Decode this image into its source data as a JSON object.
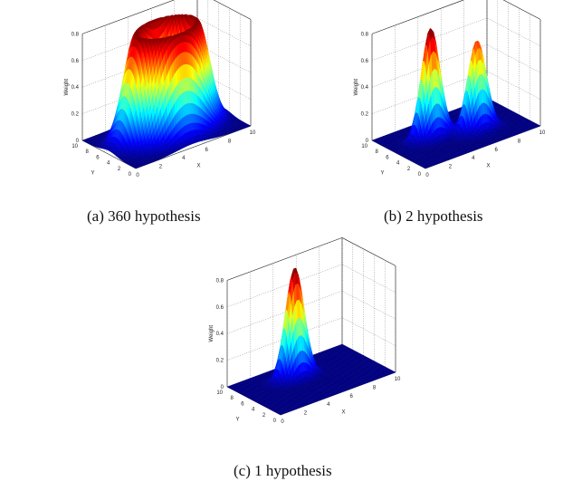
{
  "chart_data": [
    {
      "type": "surface",
      "caption": "(a) 360 hypothesis",
      "xlabel": "X",
      "ylabel": "Y",
      "zlabel": "Weight",
      "xlim": [
        0,
        10
      ],
      "ylim": [
        0,
        10
      ],
      "zlim": [
        0,
        0.8
      ],
      "x_ticks": [
        "0",
        "2",
        "4",
        "6",
        "8",
        "10"
      ],
      "y_ticks": [
        "0",
        "2",
        "4",
        "6",
        "8",
        "10"
      ],
      "z_ticks": [
        "0",
        "0.2",
        "0.4",
        "0.6",
        "0.8"
      ],
      "grid": true,
      "colormap": "jet",
      "surface": {
        "shape": "ring",
        "center": [
          5,
          5
        ],
        "radius": 2.4,
        "width": 1.0,
        "peak": 0.8
      }
    },
    {
      "type": "surface",
      "caption": "(b) 2 hypothesis",
      "xlabel": "X",
      "ylabel": "Y",
      "zlabel": "Weight",
      "xlim": [
        0,
        10
      ],
      "ylim": [
        0,
        10
      ],
      "zlim": [
        0,
        0.8
      ],
      "x_ticks": [
        "0",
        "2",
        "4",
        "6",
        "8",
        "10"
      ],
      "y_ticks": [
        "0",
        "2",
        "4",
        "6",
        "8",
        "10"
      ],
      "z_ticks": [
        "0",
        "0.2",
        "0.4",
        "0.6",
        "0.8"
      ],
      "grid": true,
      "colormap": "jet",
      "surface": {
        "shape": "peaks",
        "peaks": [
          {
            "center": [
              3.2,
              5.9
            ],
            "sigma": 0.75,
            "height": 0.83
          },
          {
            "center": [
              6.3,
              3.9
            ],
            "sigma": 0.75,
            "height": 0.68
          }
        ]
      }
    },
    {
      "type": "surface",
      "caption": "(c) 1 hypothesis",
      "xlabel": "X",
      "ylabel": "Y",
      "zlabel": "Weight",
      "xlim": [
        0,
        10
      ],
      "ylim": [
        0,
        10
      ],
      "zlim": [
        0,
        0.8
      ],
      "x_ticks": [
        "0",
        "2",
        "4",
        "6",
        "8",
        "10"
      ],
      "y_ticks": [
        "0",
        "2",
        "4",
        "6",
        "8",
        "10"
      ],
      "z_ticks": [
        "0",
        "0.2",
        "0.4",
        "0.6",
        "0.8"
      ],
      "grid": true,
      "colormap": "jet",
      "surface": {
        "shape": "peaks",
        "peaks": [
          {
            "center": [
              4.3,
              6.6
            ],
            "sigma": 0.75,
            "height": 0.83
          }
        ]
      }
    }
  ]
}
